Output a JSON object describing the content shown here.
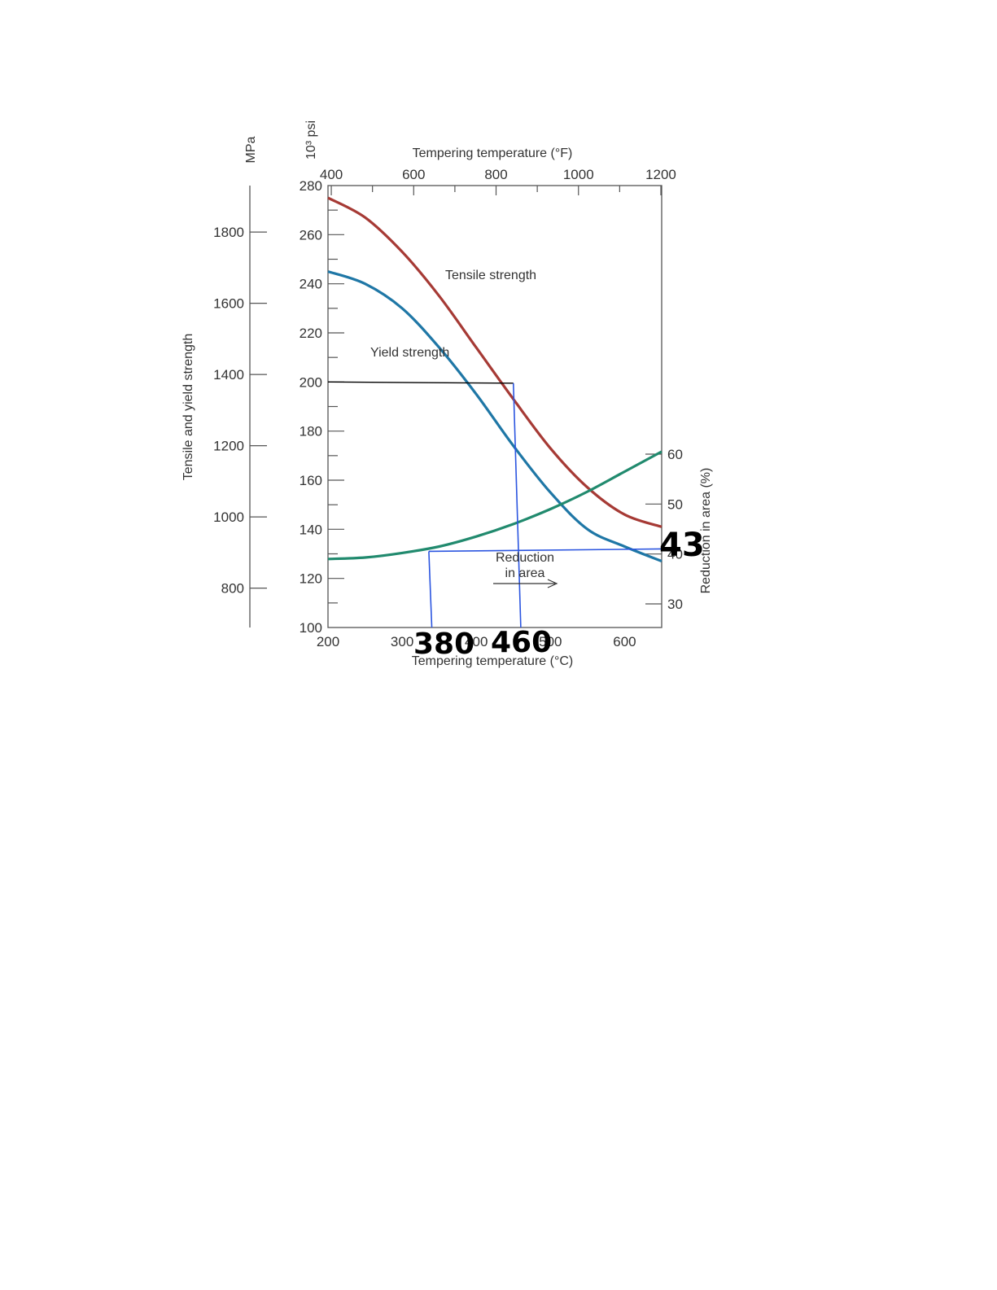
{
  "chart_data": {
    "type": "line",
    "x_bottom": {
      "label": "Tempering temperature (°C)",
      "ticks": [
        200,
        300,
        400,
        500,
        600
      ],
      "range": [
        200,
        650
      ]
    },
    "x_top": {
      "label": "Tempering temperature (°F)",
      "ticks": [
        400,
        600,
        800,
        1000,
        1200
      ],
      "range": [
        392,
        1202
      ]
    },
    "y_left_mpa": {
      "label": "MPa",
      "ticks": [
        800,
        1000,
        1200,
        1400,
        1600,
        1800
      ]
    },
    "y_left_ksi": {
      "label": "10³ psi",
      "ticks": [
        100,
        120,
        140,
        160,
        180,
        200,
        220,
        240,
        260,
        280
      ],
      "range": [
        100,
        280
      ]
    },
    "y_left_title": "Tensile and yield strength",
    "y_right": {
      "label": "Reduction in area (%)",
      "ticks": [
        30,
        40,
        50,
        60
      ]
    },
    "series": [
      {
        "name": "Tensile strength",
        "axis": "ksi",
        "color": "#a63a35",
        "x": [
          200,
          250,
          300,
          350,
          400,
          450,
          500,
          550,
          600,
          650
        ],
        "y": [
          275,
          267,
          253,
          235,
          214,
          193,
          173,
          157,
          146,
          141
        ]
      },
      {
        "name": "Yield strength",
        "axis": "ksi",
        "color": "#1f77a6",
        "x": [
          200,
          250,
          300,
          350,
          400,
          450,
          500,
          550,
          600,
          650
        ],
        "y": [
          245,
          240,
          230,
          214,
          195,
          174,
          155,
          140,
          133,
          127
        ]
      },
      {
        "name": "Reduction in area",
        "label_lines": [
          "Reduction",
          "in area"
        ],
        "axis": "percent",
        "color": "#218a6e",
        "x": [
          200,
          250,
          300,
          350,
          400,
          450,
          500,
          550,
          600,
          650
        ],
        "y": [
          39.0,
          39.3,
          40.2,
          41.5,
          43.5,
          46.0,
          49.0,
          52.5,
          56.5,
          60.5
        ]
      }
    ],
    "annotations": {
      "hand_values": [
        "380",
        "460",
        "43"
      ],
      "colors": {
        "black_line": "#000000",
        "blue_line": "#2b55e0"
      },
      "lines": [
        {
          "color": "black",
          "points": [
            [
              200,
              200
            ],
            [
              450,
              199.5
            ]
          ]
        },
        {
          "color": "blue",
          "points": [
            [
              450,
              199.5
            ],
            [
              460,
              100
            ]
          ]
        },
        {
          "color": "blue",
          "points": [
            [
              336,
              131
            ],
            [
              650,
              132
            ]
          ]
        },
        {
          "color": "blue",
          "points": [
            [
              336,
              131
            ],
            [
              340,
              100
            ]
          ]
        }
      ]
    }
  }
}
